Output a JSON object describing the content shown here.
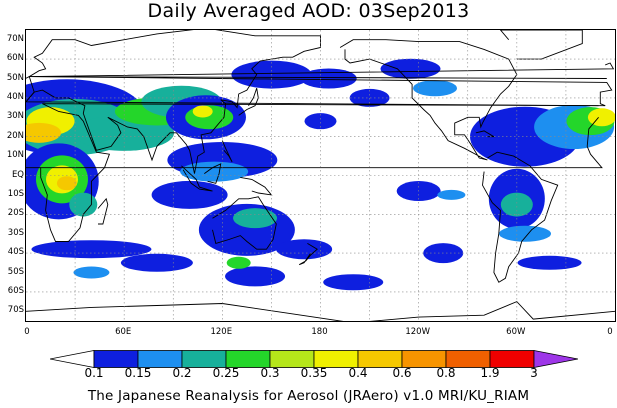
{
  "title": "Daily Averaged AOD: 03Sep2013",
  "lat_labels": [
    "70N",
    "60N",
    "50N",
    "40N",
    "30N",
    "20N",
    "10N",
    "EQ",
    "10S",
    "20S",
    "30S",
    "40S",
    "50S",
    "60S",
    "70S"
  ],
  "lon_labels": [
    "0",
    "60E",
    "120E",
    "180",
    "120W",
    "60W",
    "0"
  ],
  "legend": {
    "labels": [
      "0.1",
      "0.15",
      "0.2",
      "0.25",
      "0.3",
      "0.35",
      "0.4",
      "0.6",
      "0.8",
      "1.9",
      "3"
    ],
    "colors": [
      "#ffffff",
      "#0e1fdf",
      "#1d8ff0",
      "#17b09b",
      "#24d62a",
      "#b5e61a",
      "#f0f000",
      "#f5c800",
      "#f79400",
      "#f06000",
      "#f00000",
      "#9e36e8"
    ]
  },
  "footer": "The Japanese Reanalysis for Aerosol (JRAero) v1.0 MRI/KU_RIAM"
}
